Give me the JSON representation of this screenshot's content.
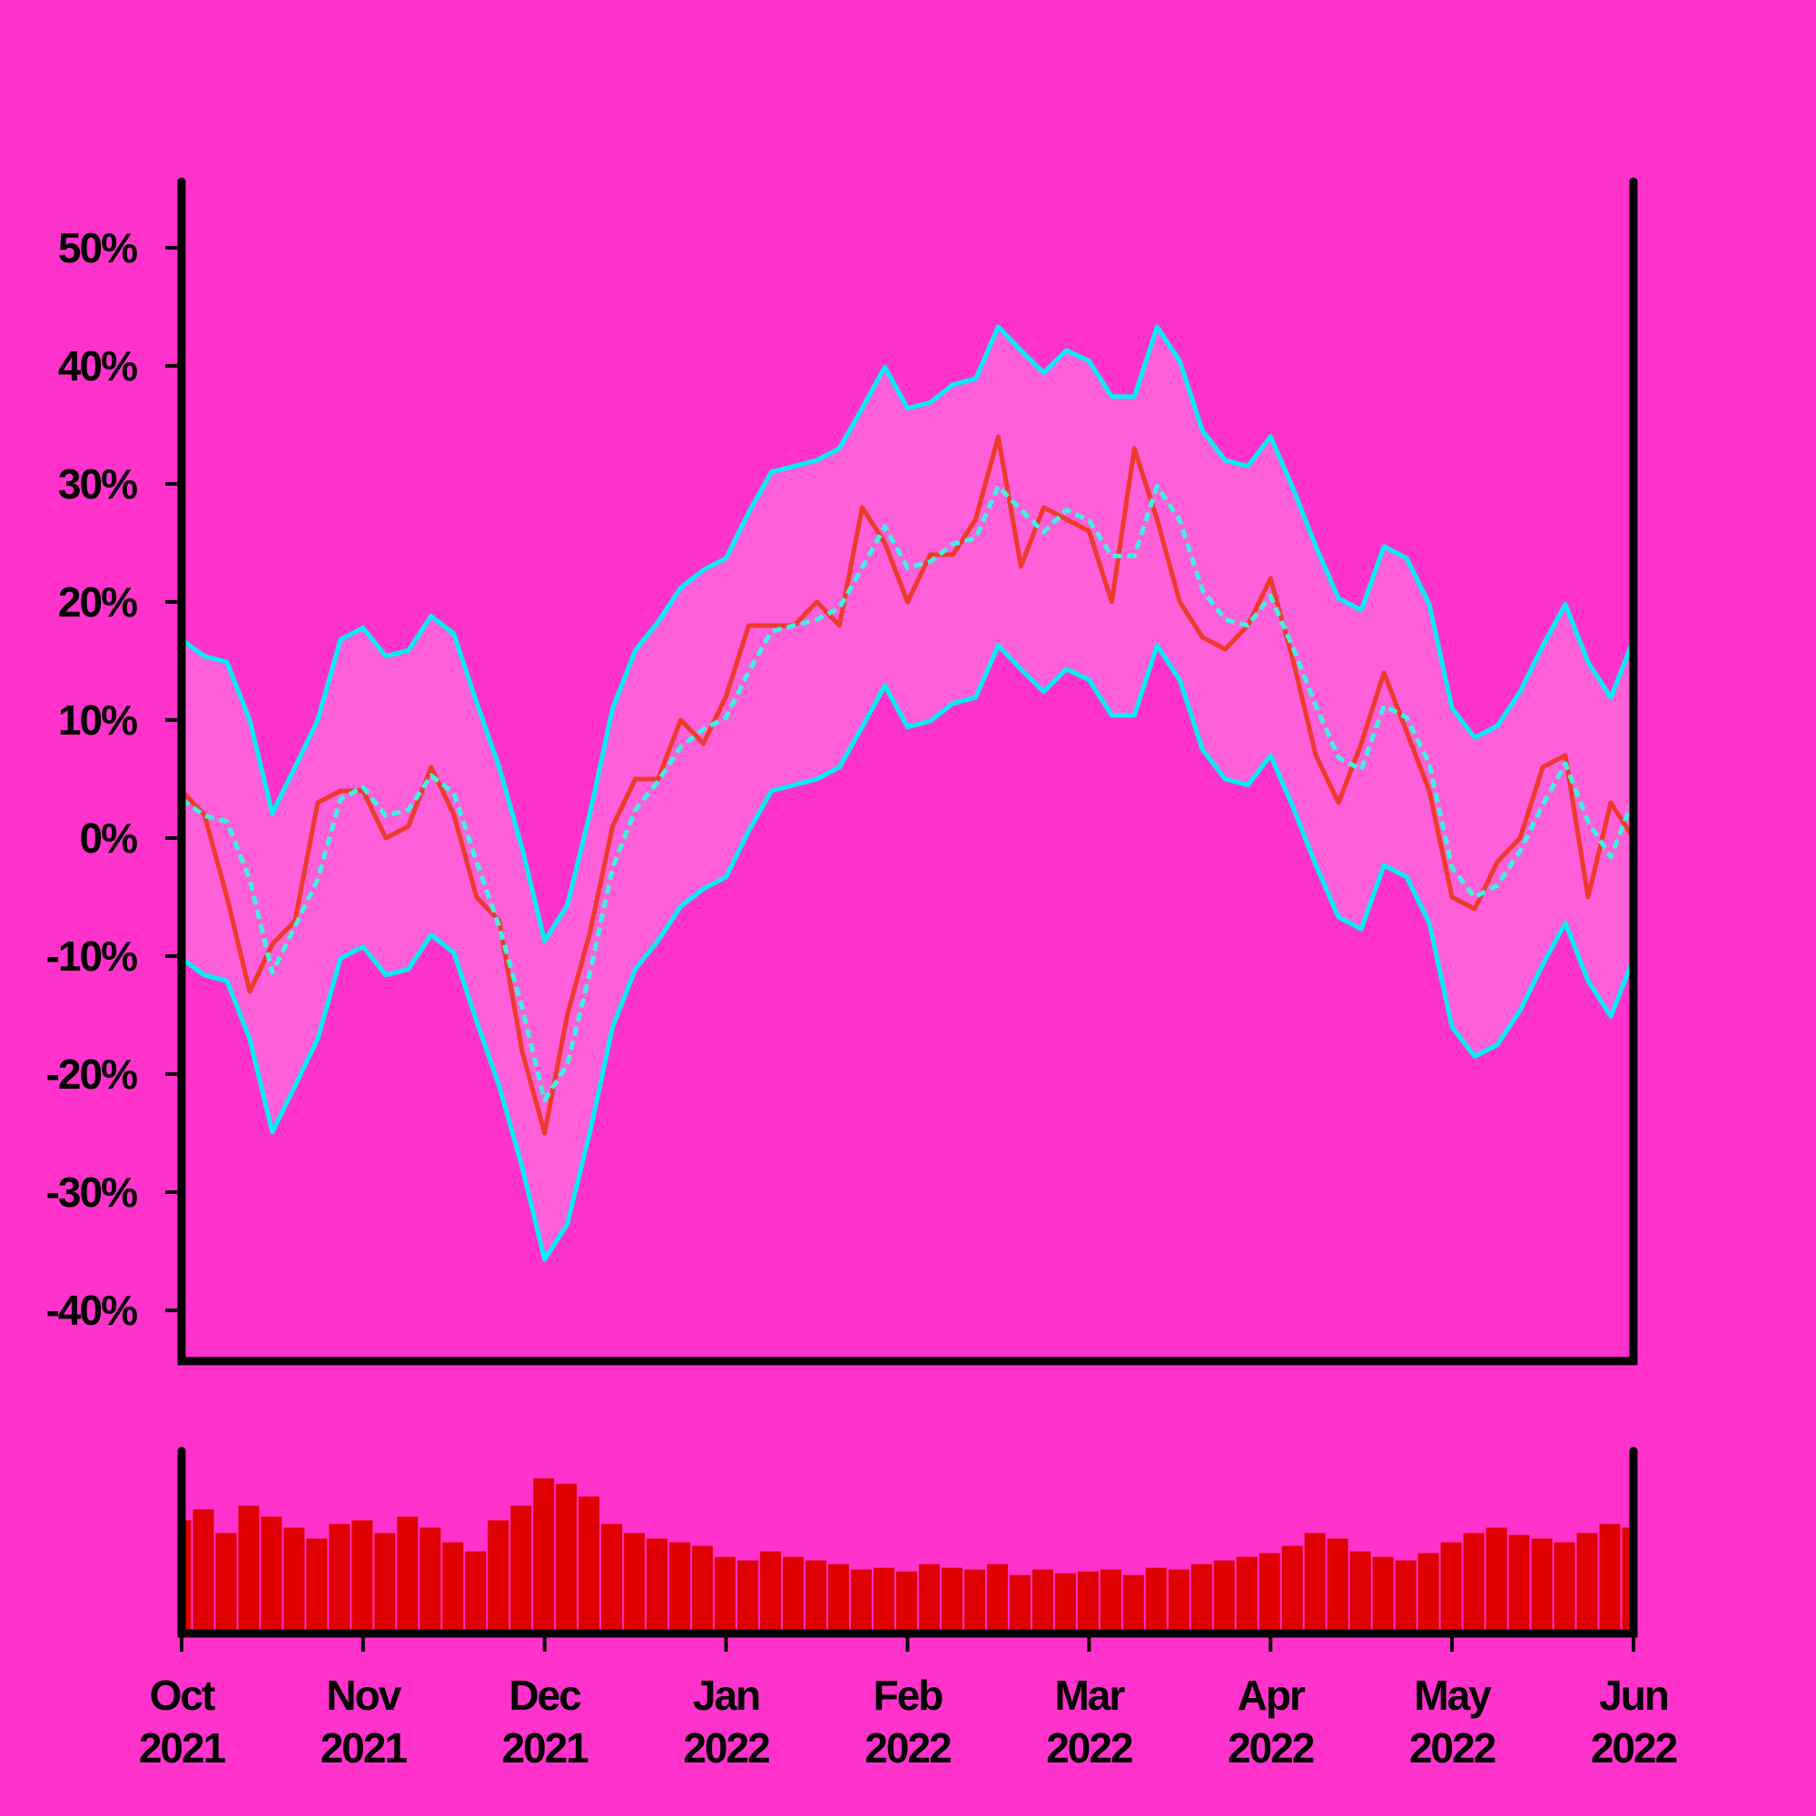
{
  "chart_data": [
    {
      "type": "line",
      "xlim": [
        0,
        8
      ],
      "ylim": [
        -44.3,
        55.6
      ],
      "yticks": [
        {
          "value": -40,
          "label": "-40%"
        },
        {
          "value": -30,
          "label": "-30%"
        },
        {
          "value": -20,
          "label": "-20%"
        },
        {
          "value": -10,
          "label": "-10%"
        },
        {
          "value": 0,
          "label": "0%"
        },
        {
          "value": 10,
          "label": "10%"
        },
        {
          "value": 20,
          "label": "20%"
        },
        {
          "value": 30,
          "label": "30%"
        },
        {
          "value": 40,
          "label": "40%"
        },
        {
          "value": 50,
          "label": "50%"
        }
      ],
      "band_color": "#ff5fd8",
      "x": [
        0,
        0.125,
        0.25,
        0.375,
        0.5,
        0.625,
        0.75,
        0.875,
        1,
        1.125,
        1.25,
        1.375,
        1.5,
        1.625,
        1.75,
        1.875,
        2,
        2.125,
        2.25,
        2.375,
        2.5,
        2.625,
        2.75,
        2.875,
        3,
        3.125,
        3.25,
        3.375,
        3.5,
        3.625,
        3.75,
        3.875,
        4,
        4.125,
        4.25,
        4.375,
        4.5,
        4.625,
        4.75,
        4.875,
        5,
        5.125,
        5.25,
        5.375,
        5.5,
        5.625,
        5.75,
        5.875,
        6,
        6.125,
        6.25,
        6.375,
        6.5,
        6.625,
        6.75,
        6.875,
        7,
        7.125,
        7.25,
        7.375,
        7.5,
        7.625,
        7.75,
        7.875,
        8
      ],
      "series": [
        {
          "color": "#00f0f0",
          "style": "solid",
          "values": [
            16.8,
            15.4,
            14.9,
            10,
            2.1,
            6,
            10,
            16.8,
            17.8,
            15.4,
            15.9,
            18.8,
            17.3,
            11.5,
            6,
            -0.8,
            -8.7,
            -5.7,
            2.1,
            11,
            15.9,
            18.3,
            21.2,
            22.7,
            23.7,
            27.6,
            31,
            31.5,
            32,
            33,
            36.4,
            39.9,
            36.4,
            36.9,
            38.4,
            38.9,
            43.3,
            41.3,
            39.4,
            41.3,
            40.4,
            37.4,
            37.4,
            43.3,
            40.4,
            34.5,
            32,
            31.5,
            34,
            29.6,
            24.7,
            20.3,
            19.3,
            24.7,
            23.7,
            19.8,
            11,
            8.5,
            9.5,
            12.4,
            16.3,
            19.8,
            14.9,
            11.9,
            16.8
          ]
        },
        {
          "color": "#00f0f0",
          "style": "solid",
          "values": [
            -10.2,
            -11.6,
            -12.1,
            -17,
            -24.9,
            -21,
            -17,
            -10.2,
            -9.2,
            -11.6,
            -11.1,
            -8.2,
            -9.7,
            -15.5,
            -21,
            -27.8,
            -35.7,
            -32.7,
            -24.9,
            -16,
            -11.1,
            -8.7,
            -5.8,
            -4.3,
            -3.3,
            0.6,
            4,
            4.5,
            5,
            6,
            9.4,
            12.9,
            9.4,
            9.9,
            11.4,
            11.9,
            16.3,
            14.3,
            12.4,
            14.3,
            13.4,
            10.4,
            10.4,
            16.3,
            13.4,
            7.5,
            5,
            4.5,
            7,
            2.6,
            -2.3,
            -6.7,
            -7.7,
            -2.3,
            -3.3,
            -7.2,
            -16,
            -18.5,
            -17.5,
            -14.6,
            -10.7,
            -7.2,
            -12.1,
            -15.1,
            -10.2
          ]
        },
        {
          "color": "#ee3a2c",
          "style": "solid",
          "values": [
            4,
            2,
            -5,
            -13,
            -9,
            -7,
            3,
            4,
            4,
            0,
            1,
            6,
            2,
            -5,
            -7,
            -18,
            -25,
            -15,
            -8,
            1,
            5,
            5,
            10,
            8,
            12,
            18,
            18,
            18,
            20,
            18,
            28,
            25,
            20,
            24,
            24,
            27,
            34,
            23,
            28,
            27,
            26,
            20,
            33,
            27,
            20,
            17,
            16,
            18,
            22,
            15,
            7,
            3,
            8,
            14,
            9,
            4,
            -5,
            -6,
            -2,
            0,
            6,
            7,
            -5,
            3,
            0
          ]
        },
        {
          "color": "#3ff0e0",
          "style": "dashed",
          "values": [
            3.3,
            1.9,
            1.4,
            -3.5,
            -11.4,
            -7.5,
            -3.5,
            3.3,
            4.3,
            1.9,
            2.4,
            5.3,
            3.8,
            -2,
            -7.5,
            -14.3,
            -22.2,
            -19.2,
            -11.4,
            -2.5,
            2.4,
            4.8,
            7.7,
            9.2,
            10.2,
            14.1,
            17.5,
            18,
            18.5,
            19.5,
            22.9,
            26.4,
            22.9,
            23.4,
            24.9,
            25.4,
            29.8,
            27.8,
            25.9,
            27.8,
            26.9,
            23.9,
            23.9,
            29.8,
            26.9,
            21,
            18.5,
            18,
            20.5,
            16.1,
            11.2,
            6.8,
            5.8,
            11.2,
            10.2,
            6.3,
            -2.5,
            -5,
            -4,
            -1.1,
            2.8,
            6.3,
            1.4,
            -1.6,
            3.3
          ]
        }
      ]
    },
    {
      "type": "bar",
      "color": "#e00000",
      "xlim": [
        0,
        8
      ],
      "ylim": [
        0,
        100
      ],
      "xticks": [
        {
          "value": 0,
          "label": "Oct\n2021"
        },
        {
          "value": 1,
          "label": "Nov\n2021"
        },
        {
          "value": 2,
          "label": "Dec\n2021"
        },
        {
          "value": 3,
          "label": "Jan\n2022"
        },
        {
          "value": 4,
          "label": "Feb\n2022"
        },
        {
          "value": 5,
          "label": "Mar\n2022"
        },
        {
          "value": 6,
          "label": "Apr\n2022"
        },
        {
          "value": 7,
          "label": "May\n2022"
        },
        {
          "value": 8,
          "label": "Jun\n2022"
        }
      ],
      "x": [
        0,
        0.125,
        0.25,
        0.375,
        0.5,
        0.625,
        0.75,
        0.875,
        1,
        1.125,
        1.25,
        1.375,
        1.5,
        1.625,
        1.75,
        1.875,
        2,
        2.125,
        2.25,
        2.375,
        2.5,
        2.625,
        2.75,
        2.875,
        3,
        3.125,
        3.25,
        3.375,
        3.5,
        3.625,
        3.75,
        3.875,
        4,
        4.125,
        4.25,
        4.375,
        4.5,
        4.625,
        4.75,
        4.875,
        5,
        5.125,
        5.25,
        5.375,
        5.5,
        5.625,
        5.75,
        5.875,
        6,
        6.125,
        6.25,
        6.375,
        6.5,
        6.625,
        6.75,
        6.875,
        7,
        7.125,
        7.25,
        7.375,
        7.5,
        7.625,
        7.75,
        7.875,
        8
      ],
      "values": [
        62,
        68,
        55,
        70,
        64,
        58,
        52,
        60,
        62,
        55,
        64,
        58,
        50,
        45,
        62,
        70,
        85,
        82,
        75,
        60,
        55,
        52,
        50,
        48,
        42,
        40,
        45,
        42,
        40,
        38,
        35,
        36,
        34,
        38,
        36,
        35,
        38,
        32,
        35,
        33,
        34,
        35,
        32,
        36,
        35,
        38,
        40,
        42,
        44,
        48,
        55,
        52,
        45,
        42,
        40,
        44,
        50,
        55,
        58,
        54,
        52,
        50,
        55,
        60,
        58
      ]
    }
  ]
}
